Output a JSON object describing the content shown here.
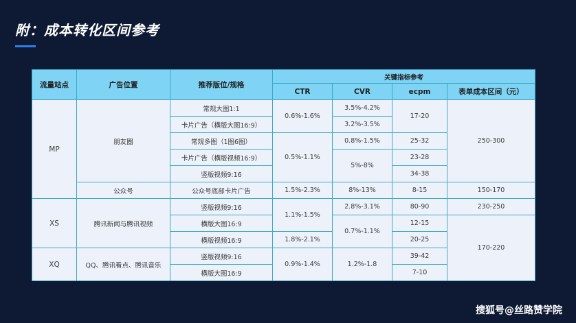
{
  "title": "附：成本转化区间参考",
  "watermark": "搜狐号@丝路赞学院",
  "table": {
    "headers": {
      "site": "流量站点",
      "position": "广告位置",
      "format": "推荐版位/规格",
      "metrics": "关键指标参考",
      "ctr": "CTR",
      "cvr": "CVR",
      "ecpm": "ecpm",
      "cost": "表单成本区间（元）"
    },
    "site_mp": "MP",
    "site_xs": "XS",
    "site_xq": "XQ",
    "pos_friends": "朋友圈",
    "pos_public": "公众号",
    "pos_tencent_news": "腾讯新闻与腾讯视频",
    "pos_qq": "QQ、腾讯看点、腾讯音乐",
    "rows": [
      {
        "format": "常规大图1:1",
        "ctr": "0.6%-1.6%",
        "cvr": "3.5%-4.2%",
        "ecpm": "17-20",
        "cost": "250-300"
      },
      {
        "format": "卡片广告（横版大图16:9）",
        "cvr": "3.2%-3.5%"
      },
      {
        "format": "常规多图（1图6图）",
        "ctr": "0.5%-1.1%",
        "cvr": "0.8%-1.5%",
        "ecpm": "25-32"
      },
      {
        "format": "卡片广告（横版视频16:9）",
        "cvr": "5%-8%",
        "ecpm": "23-28"
      },
      {
        "format": "竖版视频9:16",
        "ecpm": "34-38"
      },
      {
        "format": "公众号底部卡片广告",
        "ctr": "1.5%-2.3%",
        "cvr": "8%-13%",
        "ecpm": "8-15",
        "cost": "150-170"
      },
      {
        "format": "竖版视频9:16",
        "ctr": "1.1%-1.5%",
        "cvr": "2.8%-3.1%",
        "ecpm": "80-90",
        "cost": "230-250"
      },
      {
        "format": "横版大图16:9",
        "cvr": "0.7%-1.1%",
        "ecpm": "12-15",
        "cost": "170-220"
      },
      {
        "format": "横版视频16:9",
        "ctr": "1.8%-2.1%",
        "ecpm": "20-25"
      },
      {
        "format": "竖版视频9:16",
        "ctr": "0.9%-1.4%",
        "cvr": "1.2%-1.8",
        "ecpm": "39-42"
      },
      {
        "format": "横版大图16:9",
        "ecpm": "7-10"
      }
    ]
  }
}
